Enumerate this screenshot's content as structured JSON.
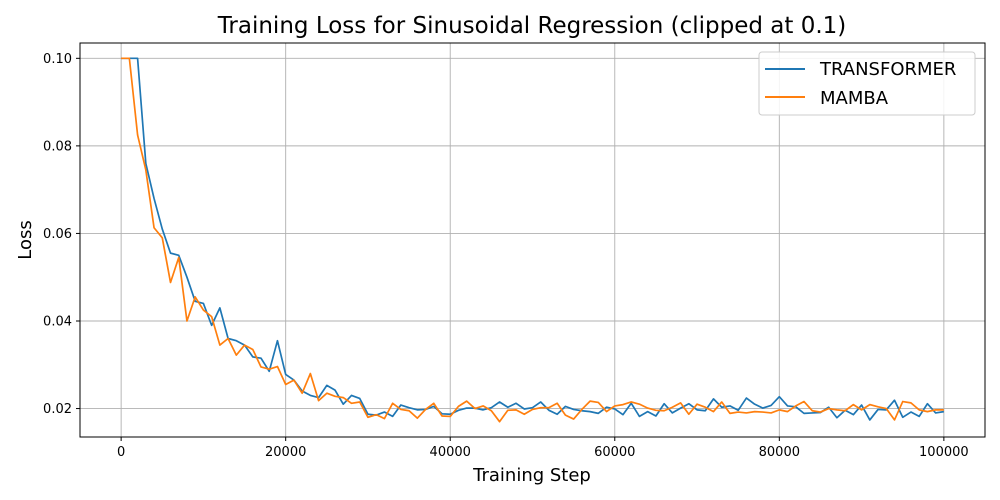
{
  "chart_data": {
    "type": "line",
    "title": "Training Loss for Sinusoidal Regression (clipped at 0.1)",
    "xlabel": "Training Step",
    "ylabel": "Loss",
    "xlim": [
      -5000,
      105000
    ],
    "ylim": [
      0.0135,
      0.1035
    ],
    "grid": true,
    "legend_position": "top-right",
    "x_ticks": [
      0,
      20000,
      40000,
      60000,
      80000,
      100000
    ],
    "x_tick_labels": [
      "0",
      "20000",
      "40000",
      "60000",
      "80000",
      "100000"
    ],
    "y_ticks": [
      0.02,
      0.04,
      0.06,
      0.08,
      0.1
    ],
    "y_tick_labels": [
      "0.02",
      "0.04",
      "0.06",
      "0.08",
      "0.10"
    ],
    "series": [
      {
        "name": "TRANSFORMER",
        "color": "#1f77b4",
        "x": [
          0,
          1000,
          2000,
          3000,
          4000,
          5000,
          6000,
          7000,
          8000,
          9000,
          10000,
          11000,
          12000,
          13000,
          14000,
          15000,
          16000,
          17000,
          18000,
          19000,
          20000,
          21000,
          22000,
          23000,
          24000,
          25000,
          26000,
          27000,
          28000,
          29000,
          30000,
          31000,
          32000,
          33000,
          34000,
          35000,
          36000,
          37000,
          38000,
          39000,
          40000,
          41000,
          42000,
          43000,
          44000,
          45000,
          46000,
          47000,
          48000,
          49000,
          50000,
          51000,
          52000,
          53000,
          54000,
          55000,
          56000,
          57000,
          58000,
          59000,
          60000,
          61000,
          62000,
          63000,
          64000,
          65000,
          66000,
          67000,
          68000,
          69000,
          70000,
          71000,
          72000,
          73000,
          74000,
          75000,
          76000,
          77000,
          78000,
          79000,
          80000,
          81000,
          82000,
          83000,
          84000,
          85000,
          86000,
          87000,
          88000,
          89000,
          90000,
          91000,
          92000,
          93000,
          94000,
          95000,
          96000,
          97000,
          98000,
          99000,
          100000
        ],
        "y": [
          0.1,
          0.1,
          0.1,
          0.076,
          0.068,
          0.061,
          0.0555,
          0.055,
          0.05,
          0.0445,
          0.044,
          0.039,
          0.043,
          0.036,
          0.0355,
          0.0345,
          0.0318,
          0.0315,
          0.0285,
          0.0355,
          0.0278,
          0.0265,
          0.024,
          0.023,
          0.0225,
          0.0253,
          0.0242,
          0.021,
          0.023,
          0.0223,
          0.0187,
          0.0185,
          0.0192,
          0.0182,
          0.0208,
          0.0202,
          0.0197,
          0.0198,
          0.0205,
          0.0188,
          0.0187,
          0.0196,
          0.0201,
          0.0201,
          0.0197,
          0.0202,
          0.0215,
          0.0203,
          0.0212,
          0.0199,
          0.0202,
          0.0215,
          0.0196,
          0.0187,
          0.0205,
          0.0198,
          0.0195,
          0.0193,
          0.0189,
          0.0203,
          0.0199,
          0.0186,
          0.0212,
          0.0182,
          0.0193,
          0.0183,
          0.0211,
          0.019,
          0.0201,
          0.0211,
          0.0197,
          0.0195,
          0.0222,
          0.0203,
          0.0206,
          0.0196,
          0.0224,
          0.021,
          0.0201,
          0.0207,
          0.0227,
          0.0206,
          0.0204,
          0.0189,
          0.019,
          0.0191,
          0.0203,
          0.0179,
          0.0196,
          0.0186,
          0.0208,
          0.0174,
          0.0198,
          0.0197,
          0.0219,
          0.018,
          0.0192,
          0.0182,
          0.0211,
          0.019,
          0.0193
        ]
      },
      {
        "name": "MAMBA",
        "color": "#ff7f0e",
        "x": [
          0,
          1000,
          2000,
          3000,
          4000,
          5000,
          6000,
          7000,
          8000,
          9000,
          10000,
          11000,
          12000,
          13000,
          14000,
          15000,
          16000,
          17000,
          18000,
          19000,
          20000,
          21000,
          22000,
          23000,
          24000,
          25000,
          26000,
          27000,
          28000,
          29000,
          30000,
          31000,
          32000,
          33000,
          34000,
          35000,
          36000,
          37000,
          38000,
          39000,
          40000,
          41000,
          42000,
          43000,
          44000,
          45000,
          46000,
          47000,
          48000,
          49000,
          50000,
          51000,
          52000,
          53000,
          54000,
          55000,
          56000,
          57000,
          58000,
          59000,
          60000,
          61000,
          62000,
          63000,
          64000,
          65000,
          66000,
          67000,
          68000,
          69000,
          70000,
          71000,
          72000,
          73000,
          74000,
          75000,
          76000,
          77000,
          78000,
          79000,
          80000,
          81000,
          82000,
          83000,
          84000,
          85000,
          86000,
          87000,
          88000,
          89000,
          90000,
          91000,
          92000,
          93000,
          94000,
          95000,
          96000,
          97000,
          98000,
          99000,
          100000
        ],
        "y": [
          0.1,
          0.1,
          0.0825,
          0.0745,
          0.0613,
          0.059,
          0.0488,
          0.0545,
          0.04,
          0.0455,
          0.0425,
          0.041,
          0.0345,
          0.036,
          0.0322,
          0.0345,
          0.0335,
          0.0295,
          0.029,
          0.0296,
          0.0255,
          0.0265,
          0.0235,
          0.028,
          0.0218,
          0.0235,
          0.0228,
          0.0225,
          0.0212,
          0.0215,
          0.018,
          0.0186,
          0.0177,
          0.0212,
          0.0198,
          0.0195,
          0.0178,
          0.0198,
          0.0212,
          0.0183,
          0.0182,
          0.0205,
          0.0217,
          0.02,
          0.0206,
          0.0195,
          0.017,
          0.0196,
          0.0197,
          0.0187,
          0.0198,
          0.0202,
          0.0202,
          0.0212,
          0.0185,
          0.0176,
          0.0198,
          0.0217,
          0.0214,
          0.0193,
          0.0206,
          0.0209,
          0.0215,
          0.021,
          0.0201,
          0.0196,
          0.0195,
          0.0203,
          0.0213,
          0.0187,
          0.021,
          0.0203,
          0.0193,
          0.0215,
          0.0189,
          0.0192,
          0.019,
          0.0193,
          0.0192,
          0.019,
          0.0197,
          0.0193,
          0.0206,
          0.0216,
          0.0195,
          0.0192,
          0.02,
          0.0197,
          0.0195,
          0.0209,
          0.0197,
          0.0209,
          0.0204,
          0.02,
          0.0174,
          0.0216,
          0.0213,
          0.0197,
          0.0193,
          0.0197,
          0.0197
        ]
      }
    ]
  }
}
